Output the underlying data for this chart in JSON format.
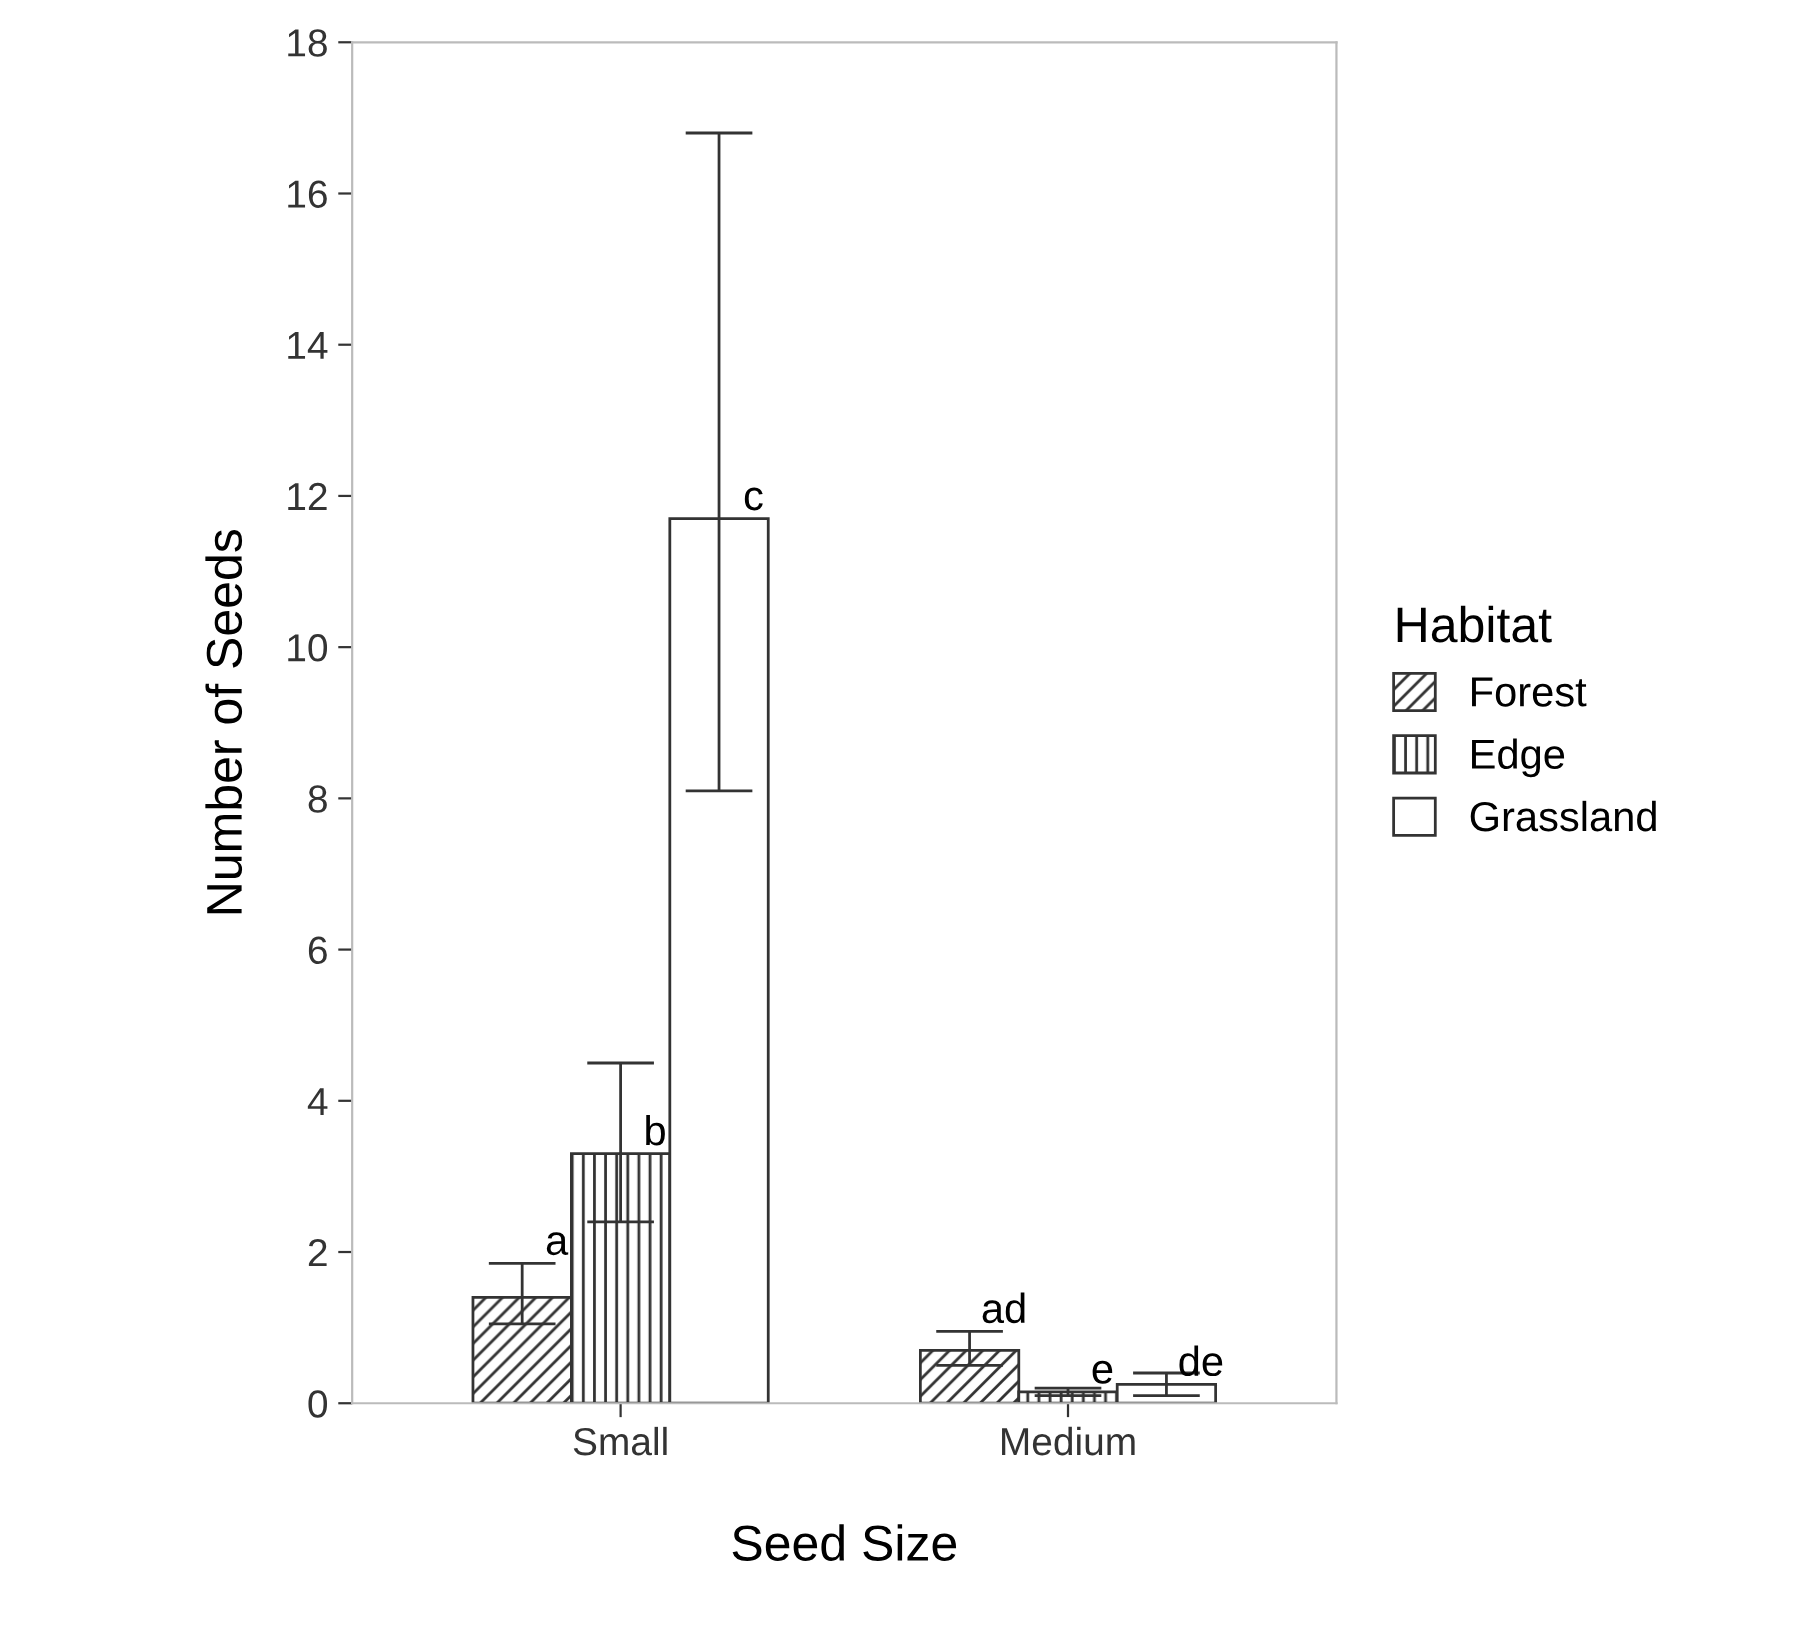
{
  "chart_data": {
    "type": "bar",
    "xlabel": "Seed Size",
    "ylabel": "Number of Seeds",
    "legend_title": "Habitat",
    "legend": "right",
    "grid": false,
    "categories": [
      "Small",
      "Medium"
    ],
    "series": [
      {
        "name": "Forest",
        "color": "#333333",
        "values": [
          1.4,
          0.7
        ],
        "errors": [
          [
            1.05,
            1.85
          ],
          [
            0.5,
            0.95
          ]
        ]
      },
      {
        "name": "Edge",
        "color": "#333333",
        "values": [
          3.3,
          0.15
        ],
        "errors": [
          [
            2.4,
            4.5
          ],
          [
            0.1,
            0.2
          ]
        ]
      },
      {
        "name": "Grassland",
        "color": "#ffffff",
        "values": [
          11.7,
          0.25
        ],
        "errors": [
          [
            8.1,
            16.8
          ],
          [
            0.1,
            0.4
          ]
        ]
      }
    ],
    "ylim": [
      0,
      18
    ],
    "yticks": [
      0,
      2,
      4,
      6,
      8,
      10,
      12,
      14,
      16,
      18
    ],
    "annotations": [
      "a",
      "b",
      "c",
      "ad",
      "e",
      "de"
    ]
  }
}
